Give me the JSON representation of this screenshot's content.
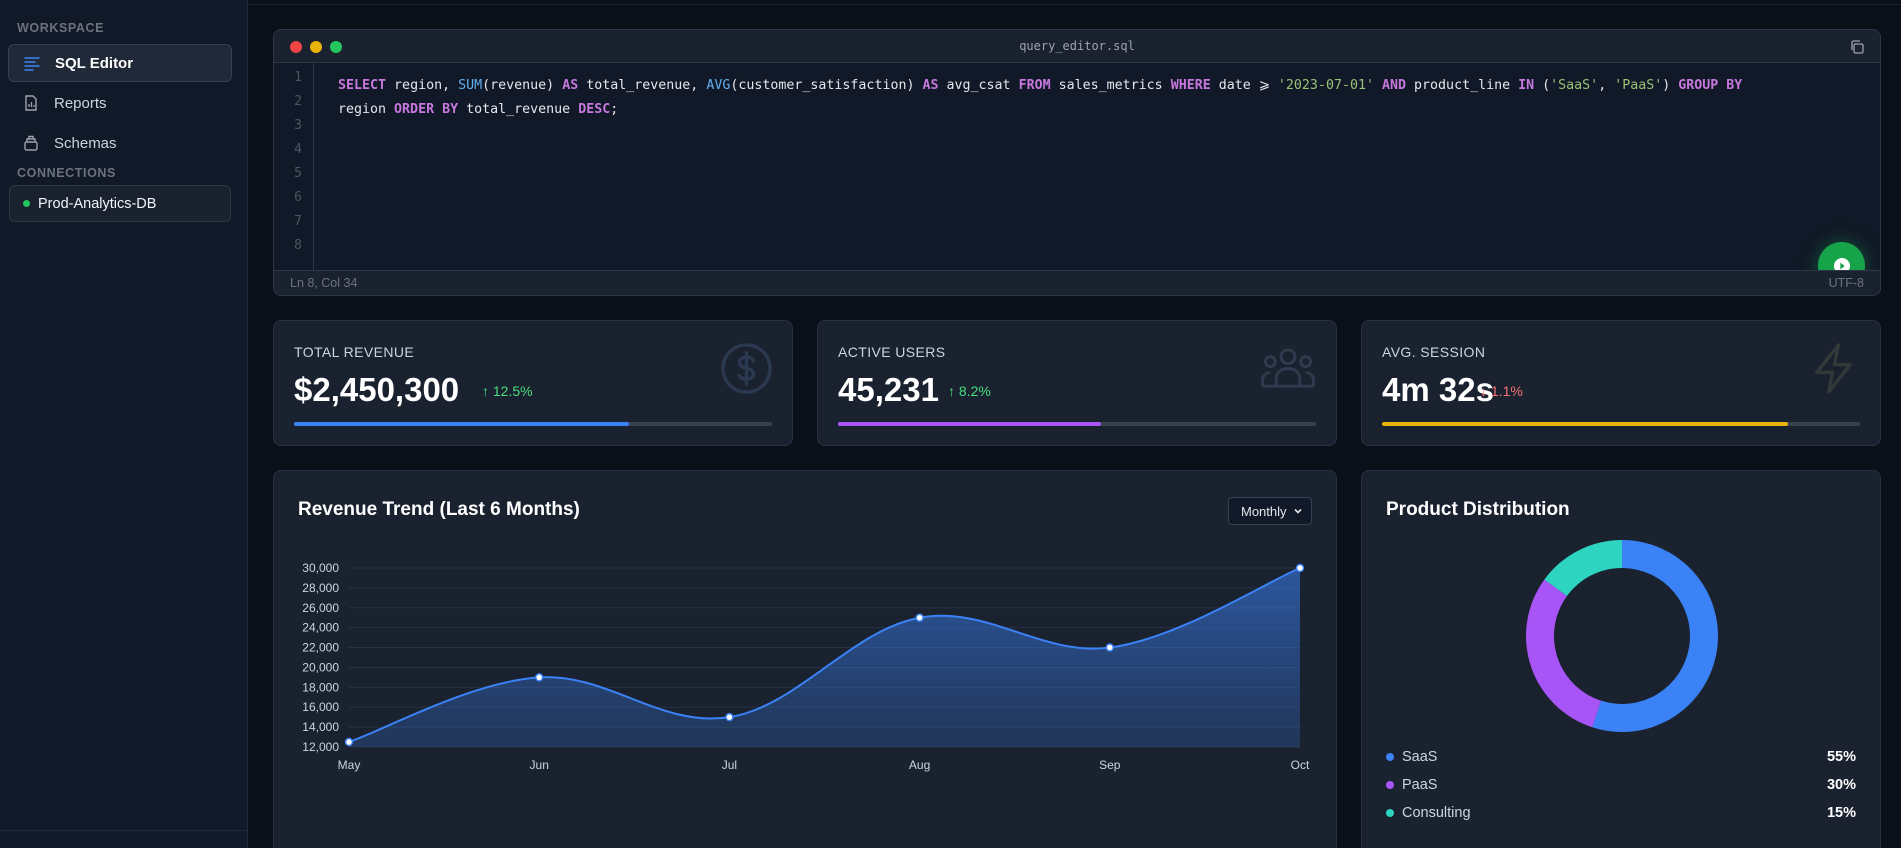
{
  "sidebar": {
    "workspace_label": "WORKSPACE",
    "items": [
      {
        "label": "SQL Editor",
        "icon": "list-icon"
      },
      {
        "label": "Reports",
        "icon": "report-icon"
      },
      {
        "label": "Schemas",
        "icon": "layers-icon"
      }
    ],
    "connections_label": "CONNECTIONS",
    "connection": {
      "label": "Prod-Analytics-DB",
      "status_color": "#22c55e"
    }
  },
  "editor": {
    "filename": "query_editor.sql",
    "line_numbers": [
      "1",
      "2",
      "3",
      "4",
      "5",
      "6",
      "7",
      "8"
    ],
    "status_position": "Ln 8, Col 34",
    "status_encoding": "UTF-8",
    "run_button": "play-icon"
  },
  "kpis": [
    {
      "label": "TOTAL REVENUE",
      "value": "$2,450,300",
      "delta": "12.5%",
      "direction": "up",
      "progress": 0.7,
      "color": "#3b82f6",
      "icon": "dollar-icon"
    },
    {
      "label": "ACTIVE USERS",
      "value": "45,231",
      "delta": "8.2%",
      "direction": "up",
      "progress": 0.55,
      "color": "#a855f7",
      "icon": "users-icon"
    },
    {
      "label": "AVG. SESSION",
      "value": "4m 32s",
      "delta": "1.1%",
      "direction": "down",
      "progress": 0.85,
      "color": "#eab308",
      "icon": "bolt-icon"
    }
  ],
  "revenue_chart": {
    "title": "Revenue Trend (Last 6 Months)",
    "period_select": "Monthly"
  },
  "product_chart": {
    "title": "Product Distribution"
  },
  "chart_data": [
    {
      "type": "area",
      "title": "Revenue Trend (Last 6 Months)",
      "categories": [
        "May",
        "Jun",
        "Jul",
        "Aug",
        "Sep",
        "Oct"
      ],
      "values": [
        12500,
        19000,
        15000,
        25000,
        22000,
        30000
      ],
      "ylim": [
        12000,
        30000
      ],
      "yticks": [
        "12,000",
        "14,000",
        "16,000",
        "18,000",
        "20,000",
        "22,000",
        "24,000",
        "26,000",
        "28,000",
        "30,000"
      ],
      "grid": true,
      "color": "#3b82f6"
    },
    {
      "type": "pie",
      "title": "Product Distribution",
      "labels": [
        "SaaS",
        "PaaS",
        "Consulting"
      ],
      "values": [
        55,
        30,
        15
      ],
      "display": [
        "55%",
        "30%",
        "15%"
      ],
      "colors": [
        "#3b82f6",
        "#a855f7",
        "#2dd4bf"
      ]
    }
  ]
}
